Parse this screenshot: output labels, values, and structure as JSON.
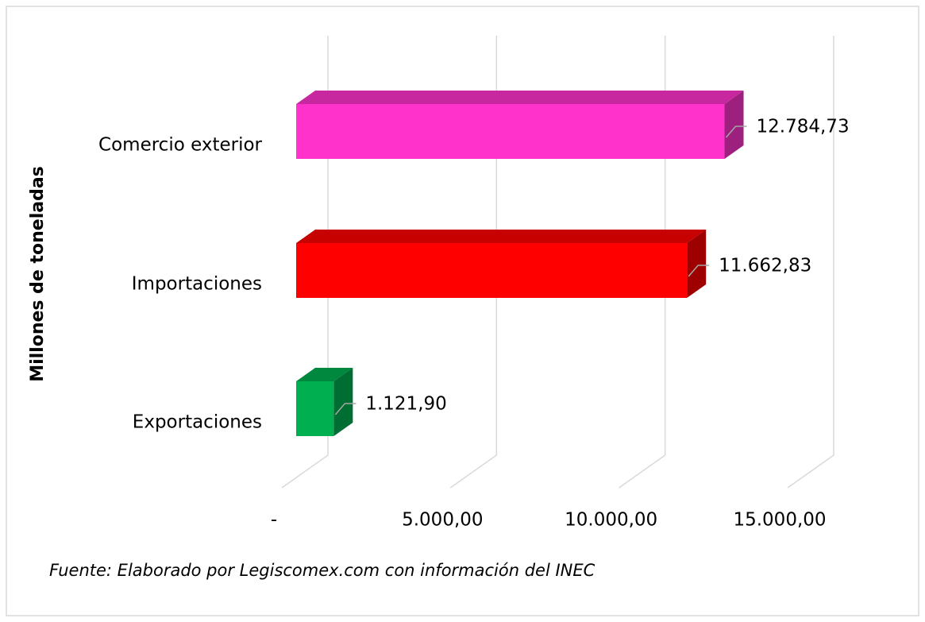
{
  "chart_data": {
    "type": "bar3d_horizontal",
    "ylabel": "Millones de toneladas",
    "source": "Fuente: Elaborado por Legiscomex.com con información del INEC",
    "categories": [
      "Comercio exterior",
      "Importaciones",
      "Exportaciones"
    ],
    "values": [
      12784.73,
      11662.83,
      1121.9
    ],
    "value_labels": [
      "12.784,73",
      "11.662,83",
      "1.121,90"
    ],
    "colors": [
      "#ff33cc",
      "#ff0000",
      "#00b050"
    ],
    "xlim": [
      0,
      15000
    ],
    "xticks": [
      {
        "value": 0,
        "label": "-"
      },
      {
        "value": 5000,
        "label": "5.000,00"
      },
      {
        "value": 10000,
        "label": "10.000,00"
      },
      {
        "value": 15000,
        "label": "15.000,00"
      }
    ],
    "grid": true
  }
}
